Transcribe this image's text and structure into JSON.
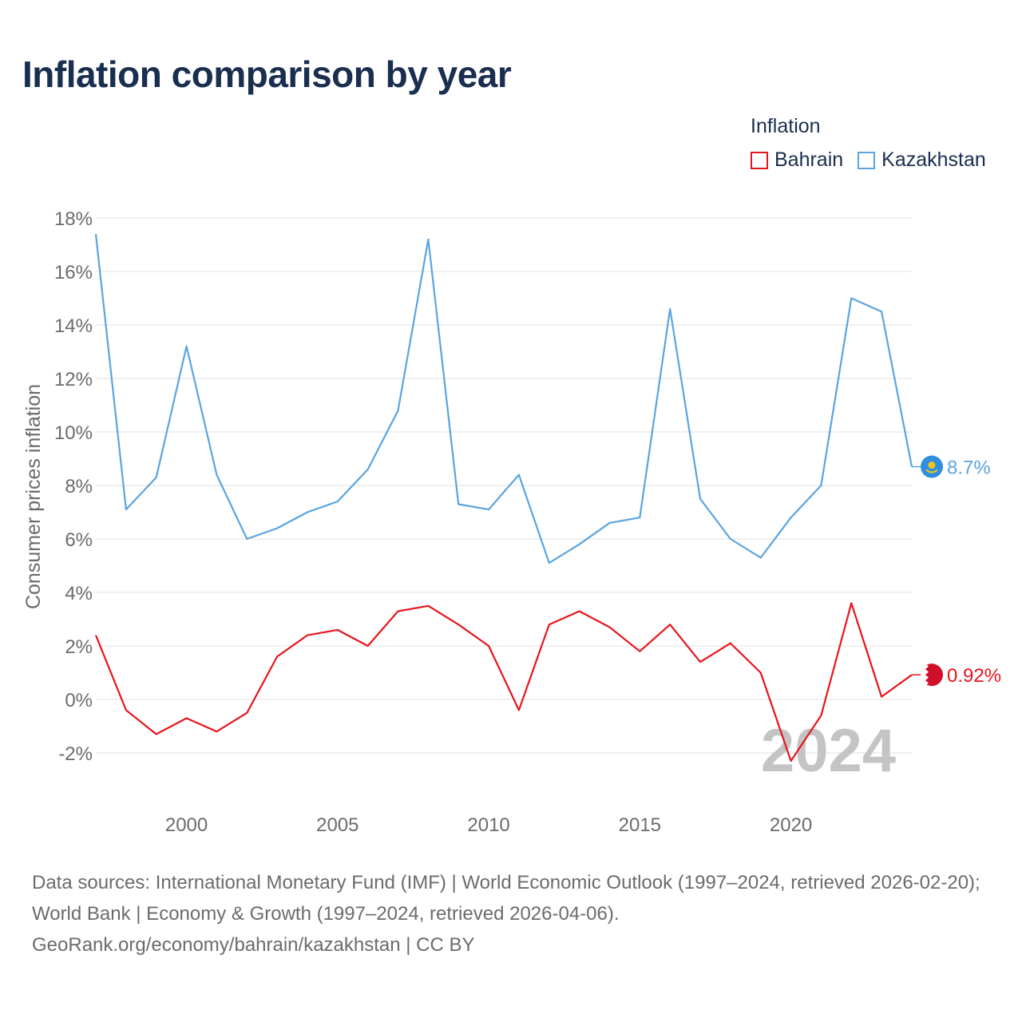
{
  "title": "Inflation comparison by year",
  "legend": {
    "title": "Inflation",
    "items": [
      {
        "name": "Bahrain",
        "color": "#e8141c"
      },
      {
        "name": "Kazakhstan",
        "color": "#5aa4e0"
      }
    ]
  },
  "footer": {
    "line1": "Data sources: International Monetary Fund (IMF) | World Economic Outlook (1997–2024, retrieved 2026-02-20); World Bank | Economy & Growth (1997–2024, retrieved 2026-04-06).",
    "line2": "GeoRank.org/economy/bahrain/kazakhstan | CC BY"
  },
  "chart_data": {
    "type": "line",
    "title": "Inflation comparison by year",
    "xlabel": "",
    "ylabel": "Consumer prices inflation",
    "xlim": [
      1997,
      2024
    ],
    "ylim": [
      -3,
      18
    ],
    "yticks": [
      -2,
      0,
      2,
      4,
      6,
      8,
      10,
      12,
      14,
      16,
      18
    ],
    "ytick_labels": [
      "-2%",
      "0%",
      "2%",
      "4%",
      "6%",
      "8%",
      "10%",
      "12%",
      "14%",
      "16%",
      "18%"
    ],
    "xticks": [
      2000,
      2005,
      2010,
      2015,
      2020
    ],
    "xtick_labels": [
      "2000",
      "2005",
      "2010",
      "2015",
      "2020"
    ],
    "watermark_year": "2024",
    "x": [
      1997,
      1998,
      1999,
      2000,
      2001,
      2002,
      2003,
      2004,
      2005,
      2006,
      2007,
      2008,
      2009,
      2010,
      2011,
      2012,
      2013,
      2014,
      2015,
      2016,
      2017,
      2018,
      2019,
      2020,
      2021,
      2022,
      2023,
      2024
    ],
    "series": [
      {
        "name": "Kazakhstan",
        "color": "#5aa4e0",
        "end_label": "8.7%",
        "values": [
          17.4,
          7.1,
          8.3,
          13.2,
          8.4,
          6.0,
          6.4,
          7.0,
          7.4,
          8.6,
          10.8,
          17.2,
          7.3,
          7.1,
          8.4,
          5.1,
          5.8,
          6.6,
          6.8,
          14.6,
          7.5,
          6.0,
          5.3,
          6.8,
          8.0,
          15.0,
          14.5,
          8.7
        ]
      },
      {
        "name": "Bahrain",
        "color": "#e8141c",
        "end_label": "0.92%",
        "values": [
          2.4,
          -0.4,
          -1.3,
          -0.7,
          -1.2,
          -0.5,
          1.6,
          2.4,
          2.6,
          2.0,
          3.3,
          3.5,
          2.8,
          2.0,
          -0.4,
          2.8,
          3.3,
          2.7,
          1.8,
          2.8,
          1.4,
          2.1,
          1.0,
          -2.3,
          -0.6,
          3.6,
          0.1,
          0.92
        ]
      }
    ]
  }
}
